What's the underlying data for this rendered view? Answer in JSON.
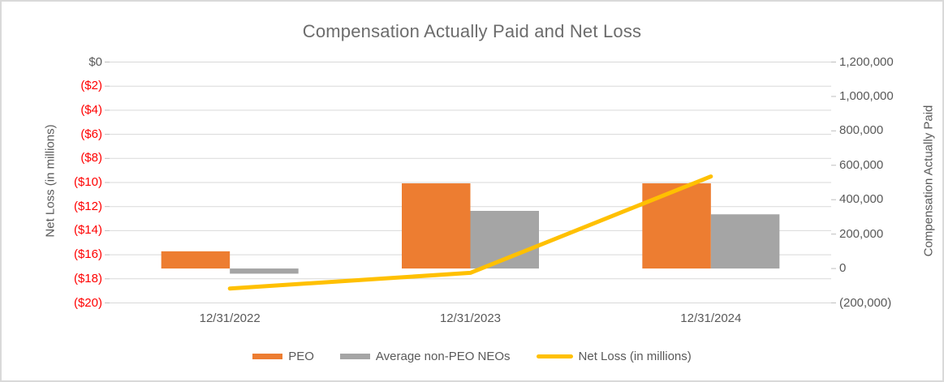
{
  "chart_data": {
    "type": "combo-bar-line",
    "title": "Compensation Actually Paid and Net Loss",
    "categories": [
      "12/31/2022",
      "12/31/2023",
      "12/31/2024"
    ],
    "series": [
      {
        "name": "PEO",
        "type": "bar",
        "axis": "right",
        "color": "#ED7D31",
        "values": [
          100000,
          495000,
          495000
        ]
      },
      {
        "name": "Average non-PEO NEOs",
        "type": "bar",
        "axis": "right",
        "color": "#A5A5A5",
        "values": [
          -30000,
          335000,
          315000
        ]
      },
      {
        "name": "Net Loss (in millions)",
        "type": "line",
        "axis": "left",
        "color": "#FFC000",
        "values": [
          -18.8,
          -17.5,
          -9.5
        ]
      }
    ],
    "left_axis": {
      "title": "Net Loss (in millions)",
      "min": -20,
      "max": 0,
      "tick_step": 2,
      "tick_labels": [
        "$0",
        "($2)",
        "($4)",
        "($6)",
        "($8)",
        "($10)",
        "($12)",
        "($14)",
        "($16)",
        "($18)",
        "($20)"
      ],
      "zero_label_color": "#595959",
      "negative_label_color": "#FF0000"
    },
    "right_axis": {
      "title": "Compensation Actually Paid",
      "min": -200000,
      "max": 1200000,
      "tick_step": 200000,
      "tick_labels": [
        "1,200,000",
        "1,000,000",
        "800,000",
        "600,000",
        "400,000",
        "200,000",
        "0",
        "(200,000)"
      ],
      "label_color": "#595959"
    },
    "legend": {
      "position": "bottom",
      "items": [
        "PEO",
        "Average non-PEO NEOs",
        "Net Loss (in millions)"
      ]
    },
    "grid": true,
    "colors": {
      "gridline": "#D9D9D9",
      "tick": "#BFBFBF",
      "title": "#6C6C6C",
      "axis_text": "#595959",
      "border": "#D9D9D9",
      "background": "#FFFFFF"
    }
  }
}
